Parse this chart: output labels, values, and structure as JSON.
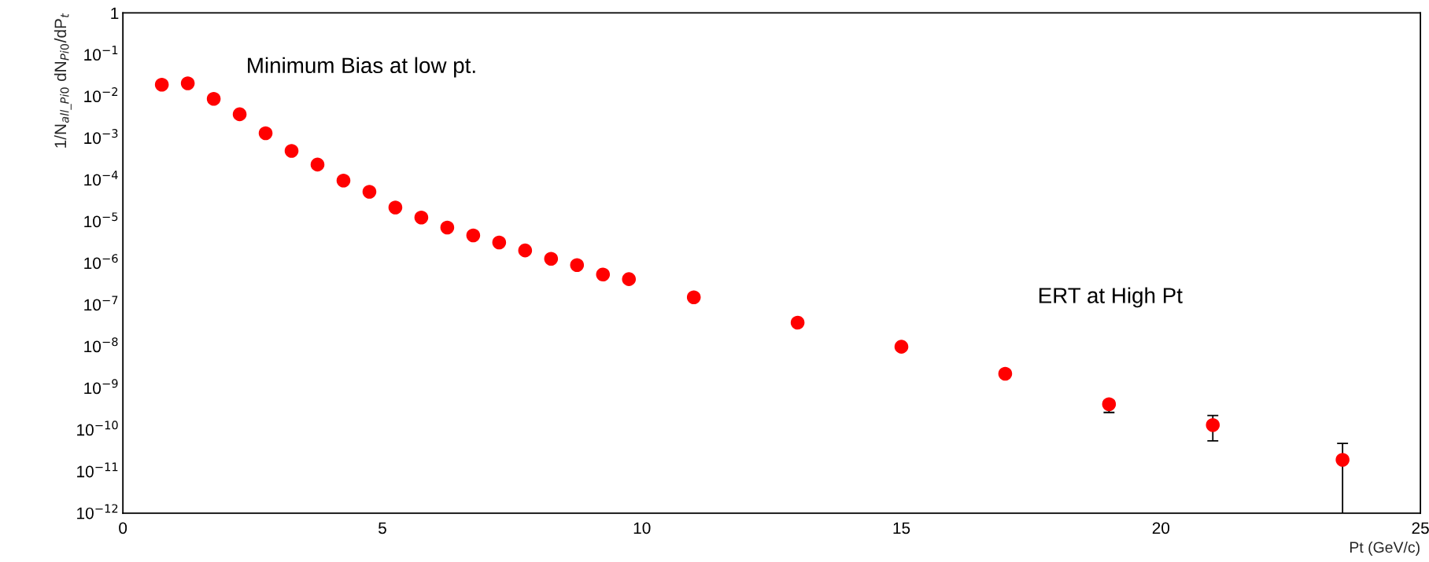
{
  "chart_data": {
    "type": "scatter",
    "xlabel": "Pt (GeV/c)",
    "ylabel": "1/N$_{all_Pi0}$ dN$_{Pi0}$/dP$_{t}$",
    "annotations": [
      "Minimum Bias at low pt.",
      "ERT at High Pt"
    ],
    "x": [
      0.75,
      1.25,
      1.75,
      2.25,
      2.75,
      3.25,
      3.75,
      4.25,
      4.75,
      5.25,
      5.75,
      6.25,
      6.75,
      7.25,
      7.75,
      8.25,
      8.75,
      9.25,
      9.75,
      11,
      13,
      15,
      17,
      19,
      21,
      23.5
    ],
    "series": [
      {
        "color": "#ff0000",
        "values": [
          0.019,
          0.0204,
          0.0087,
          0.0037,
          0.0013,
          0.00049,
          0.00023,
          9.5e-05,
          5.1e-05,
          2.15e-05,
          1.23e-05,
          7.1e-06,
          4.6e-06,
          3.1e-06,
          2e-06,
          1.26e-06,
          8.9e-07,
          5.3e-07,
          4.1e-07,
          1.5e-07,
          3.7e-08,
          9.8e-09,
          2.2e-09,
          4.1e-10,
          1.3e-10,
          1.9e-11
        ],
        "errors": [
          null,
          null,
          null,
          null,
          null,
          null,
          null,
          null,
          null,
          null,
          null,
          null,
          null,
          null,
          null,
          null,
          null,
          null,
          null,
          null,
          null,
          null,
          null,
          [
            2.6e-10,
            5e-10
          ],
          [
            5.4e-11,
            2.2e-10
          ],
          [
            1e-12,
            4.7e-11
          ]
        ]
      }
    ],
    "log": "y",
    "xlim": [
      0,
      25
    ],
    "xticks": [
      0,
      5,
      10,
      15,
      20,
      25
    ],
    "ylim": [
      1e-12,
      1
    ],
    "yticks": [
      {
        "value": 1e-12,
        "label": "10$^{−12}$"
      },
      {
        "value": 1e-11,
        "label": "10$^{−11}$"
      },
      {
        "value": 1e-10,
        "label": "10$^{−10}$"
      },
      {
        "value": 1e-09,
        "label": "10$^{−9}$"
      },
      {
        "value": 1e-08,
        "label": "10$^{−8}$"
      },
      {
        "value": 1e-07,
        "label": "10$^{−7}$"
      },
      {
        "value": 1e-06,
        "label": "10$^{−6}$"
      },
      {
        "value": 1e-05,
        "label": "10$^{−5}$"
      },
      {
        "value": 0.0001,
        "label": "10$^{−4}$"
      },
      {
        "value": 0.001,
        "label": "10$^{−3}$"
      },
      {
        "value": 0.01,
        "label": "10$^{−2}$"
      },
      {
        "value": 0.1,
        "label": "10$^{−1}$"
      },
      1
    ],
    "marker": "circle",
    "grid": false,
    "legend": false
  }
}
